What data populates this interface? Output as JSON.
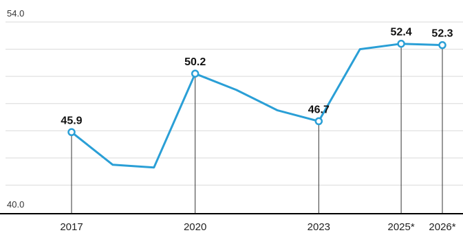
{
  "chart_data": {
    "type": "line",
    "title": "",
    "xlabel": "",
    "ylabel": "",
    "ylim": [
      40.0,
      54.0
    ],
    "y_tick_labels": [
      "54.0",
      "40.0"
    ],
    "grid": true,
    "series": [
      {
        "color": "#2a9fd6",
        "points": [
          {
            "x": 2017,
            "y": 45.9,
            "label": "45.9",
            "x_label": "2017"
          },
          {
            "x": 2018,
            "y": 43.5
          },
          {
            "x": 2019,
            "y": 43.3
          },
          {
            "x": 2020,
            "y": 50.2,
            "label": "50.2",
            "x_label": "2020"
          },
          {
            "x": 2021,
            "y": 49.0
          },
          {
            "x": 2022,
            "y": 47.5
          },
          {
            "x": 2023,
            "y": 46.7,
            "label": "46.7",
            "x_label": "2023"
          },
          {
            "x": 2024,
            "y": 52.0
          },
          {
            "x": 2025,
            "y": 52.4,
            "label": "52.4",
            "x_label": "2025*"
          },
          {
            "x": 2026,
            "y": 52.3,
            "label": "52.3",
            "x_label": "2026*"
          }
        ]
      }
    ]
  }
}
